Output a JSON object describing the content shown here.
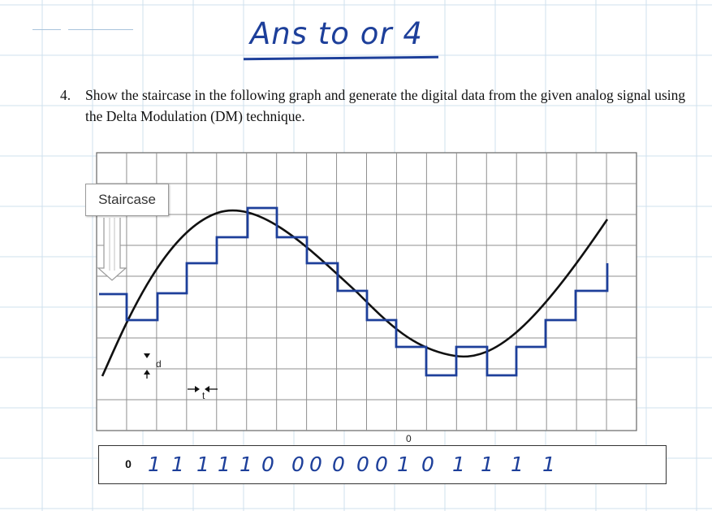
{
  "title": {
    "handwritten": "Ans to or 4"
  },
  "question": {
    "number": "4.",
    "text": "Show the staircase in the following graph and generate the digital data from the given analog signal using the Delta Modulation (DM) technique."
  },
  "graph": {
    "staircase_label": "Staircase",
    "step_label": "d",
    "time_label": "t",
    "stray_mark": "0"
  },
  "digital_data": {
    "bits": [
      "0",
      "1",
      "1",
      "1",
      "1",
      "1",
      "0",
      "0",
      "0",
      "0",
      "0",
      "0",
      "1",
      "0",
      "1",
      "1",
      "1",
      "1"
    ]
  },
  "colors": {
    "ink": "#1d3f9a",
    "notebook_grid": "#cfe0ee",
    "graph_grid": "#8f8f8f"
  }
}
